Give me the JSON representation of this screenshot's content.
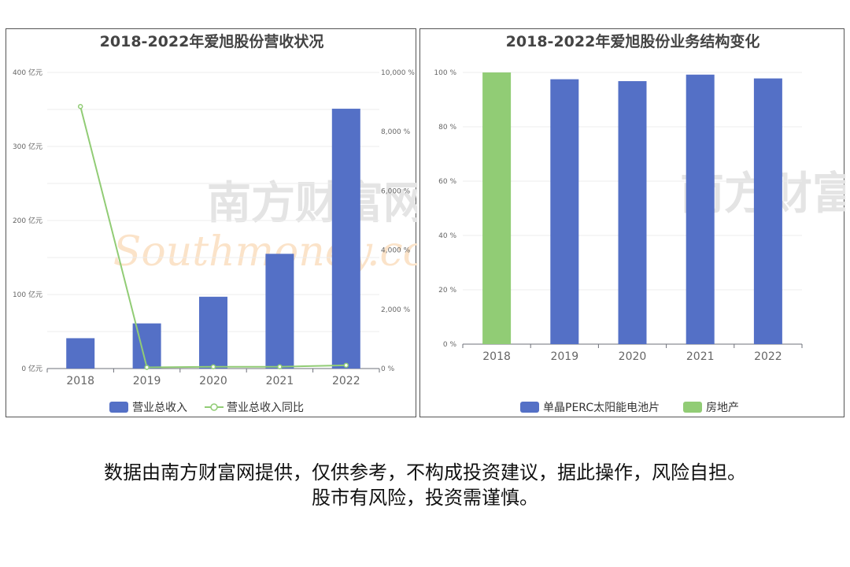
{
  "chart_data": [
    {
      "type": "bar",
      "title": "2018-2022年爱旭股份营收状况",
      "categories": [
        "2018",
        "2019",
        "2020",
        "2021",
        "2022"
      ],
      "series": [
        {
          "name": "营业总收入",
          "type": "bar",
          "axis": "left",
          "values": [
            41,
            61,
            97,
            155,
            351
          ]
        },
        {
          "name": "营业总收入同比",
          "type": "line",
          "axis": "right",
          "values": [
            8850,
            40,
            60,
            60,
            110
          ]
        }
      ],
      "y_left": {
        "ticks": [
          "0 亿元",
          "100 亿元",
          "200 亿元",
          "300 亿元",
          "400 亿元"
        ],
        "ylim": [
          0,
          400
        ]
      },
      "y_right": {
        "ticks": [
          "0 %",
          "2,000 %",
          "4,000 %",
          "6,000 %",
          "8,000 %",
          "10,000 %"
        ],
        "ylim": [
          0,
          10000
        ]
      },
      "colors": {
        "bar": "#5470c6",
        "line": "#91cc75"
      },
      "legend_position": "bottom",
      "grid": true
    },
    {
      "type": "bar",
      "title": "2018-2022年爱旭股份业务结构变化",
      "categories": [
        "2018",
        "2019",
        "2020",
        "2021",
        "2022"
      ],
      "series": [
        {
          "name": "单晶PERC太阳能电池片",
          "values": [
            0,
            97.5,
            96.8,
            99.2,
            97.8
          ]
        },
        {
          "name": "房地产",
          "values": [
            100,
            0,
            0,
            0,
            0
          ]
        }
      ],
      "y_axis": {
        "ticks": [
          "0 %",
          "20 %",
          "40 %",
          "60 %",
          "80 %",
          "100 %"
        ],
        "ylim": [
          0,
          100
        ]
      },
      "colors": {
        "perc": "#5470c6",
        "realestate": "#91cc75"
      },
      "legend_position": "bottom",
      "grid": true
    }
  ],
  "watermark": {
    "cn": "南方财富网",
    "en": "Southmoney.com"
  },
  "disclaimer": {
    "line1": "数据由南方财富网提供，仅供参考，不构成投资建议，据此操作，风险自担。",
    "line2": "股市有风险，投资需谨慎。"
  }
}
